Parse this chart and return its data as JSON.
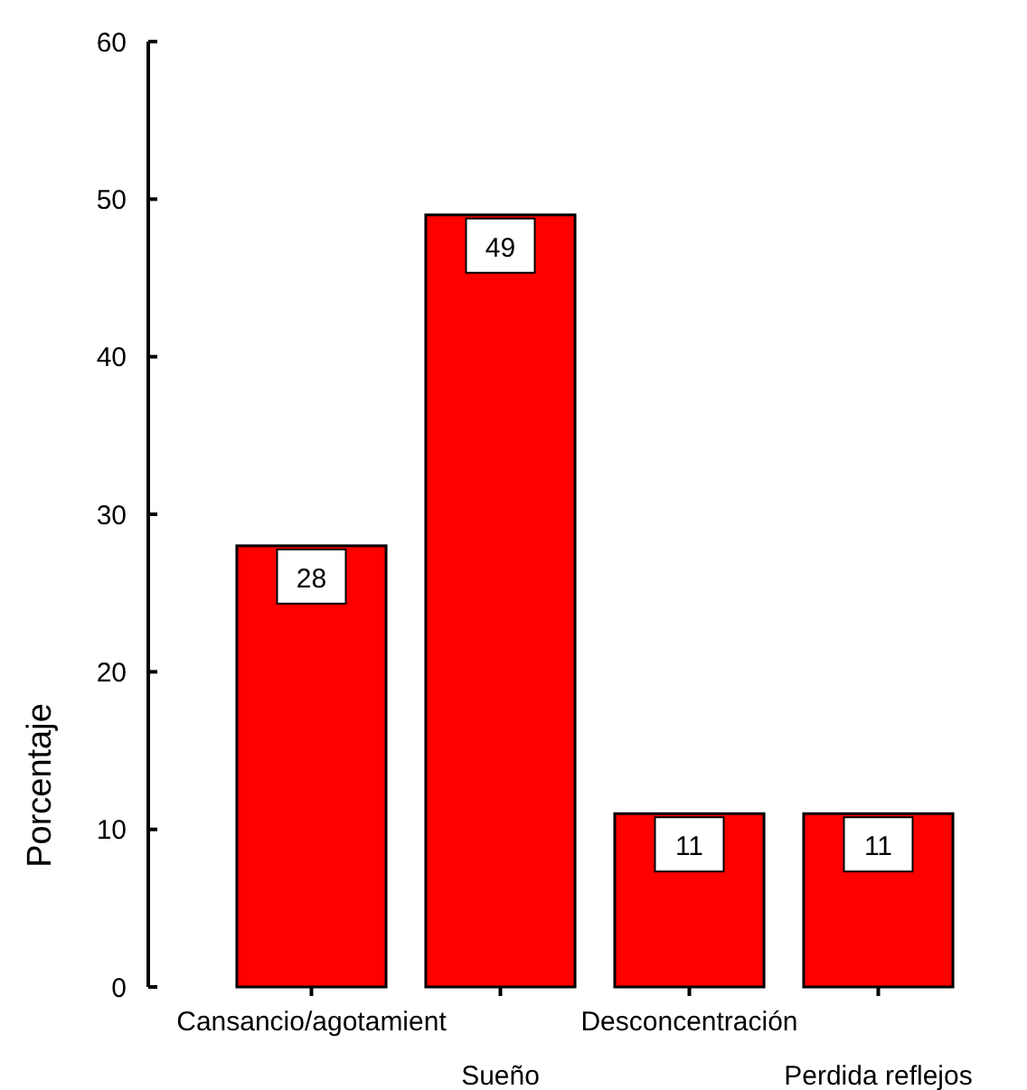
{
  "chart_data": {
    "type": "bar",
    "ylabel": "Porcentaje",
    "categories": [
      "Cansancio/agotamient",
      "Sueño",
      "Desconcentración",
      "Perdida reflejos"
    ],
    "values": [
      28,
      49,
      11,
      11
    ],
    "color": "#ff0000",
    "ylim": [
      0,
      60
    ],
    "yticks": [
      0,
      10,
      20,
      30,
      40,
      50,
      60
    ],
    "data_labels": true
  }
}
